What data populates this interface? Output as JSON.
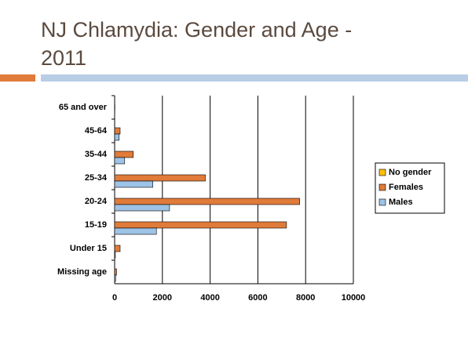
{
  "chart_data": {
    "type": "hbar",
    "title": "NJ Chlamydia: Gender and Age - 2011",
    "categories": [
      "65 and over",
      "45-64",
      "35-44",
      "25-34",
      "20-24",
      "15-19",
      "Under 15",
      "Missing age"
    ],
    "series": [
      {
        "name": "No gender",
        "color": "#ffc000",
        "values": [
          0,
          0,
          0,
          0,
          0,
          0,
          0,
          0
        ]
      },
      {
        "name": "Females",
        "color": "#e07b39",
        "values": [
          10,
          230,
          780,
          3800,
          7750,
          7200,
          230,
          80
        ]
      },
      {
        "name": "Males",
        "color": "#9dc3e6",
        "values": [
          5,
          190,
          420,
          1600,
          2300,
          1750,
          30,
          40
        ]
      }
    ],
    "xlim": [
      0,
      10000
    ],
    "xticks": [
      0,
      2000,
      4000,
      6000,
      8000,
      10000
    ],
    "grid": true,
    "legend": "right"
  }
}
